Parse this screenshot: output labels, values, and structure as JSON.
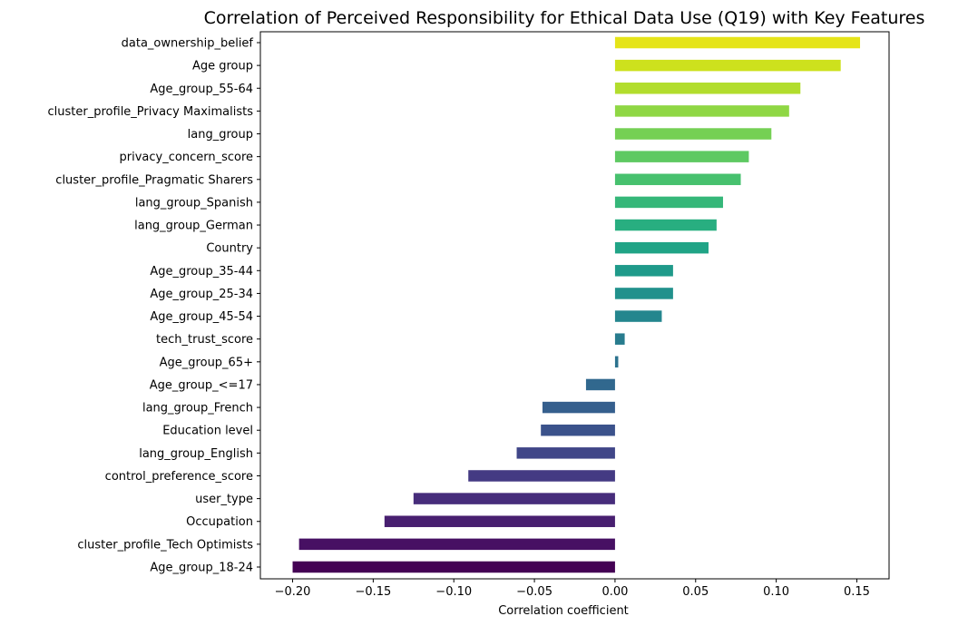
{
  "chart_data": {
    "type": "bar",
    "orientation": "horizontal",
    "title": "Correlation of Perceived Responsibility for Ethical Data Use (Q19) with Key Features",
    "xlabel": "Correlation coefficient",
    "ylabel": "",
    "xlim": [
      -0.22,
      0.17
    ],
    "xticks": [
      -0.2,
      -0.15,
      -0.1,
      -0.05,
      0.0,
      0.05,
      0.1,
      0.15
    ],
    "xtick_labels": [
      "−0.20",
      "−0.15",
      "−0.10",
      "−0.05",
      "0.00",
      "0.05",
      "0.10",
      "0.15"
    ],
    "grid": false,
    "colormap": "viridis",
    "categories": [
      "data_ownership_belief",
      "Age group",
      "Age_group_55-64",
      "cluster_profile_Privacy Maximalists",
      "lang_group",
      "privacy_concern_score",
      "cluster_profile_Pragmatic Sharers",
      "lang_group_Spanish",
      "lang_group_German",
      "Country",
      "Age_group_35-44",
      "Age_group_25-34",
      "Age_group_45-54",
      "tech_trust_score",
      "Age_group_65+",
      "Age_group_<=17",
      "lang_group_French",
      "Education level",
      "lang_group_English",
      "control_preference_score",
      "user_type",
      "Occupation",
      "cluster_profile_Tech Optimists",
      "Age_group_18-24"
    ],
    "values": [
      0.152,
      0.14,
      0.115,
      0.108,
      0.097,
      0.083,
      0.078,
      0.067,
      0.063,
      0.058,
      0.036,
      0.036,
      0.029,
      0.006,
      0.002,
      -0.018,
      -0.045,
      -0.046,
      -0.061,
      -0.091,
      -0.125,
      -0.143,
      -0.196,
      -0.2
    ],
    "colors": [
      "#e5e419",
      "#cde11d",
      "#b2dd2d",
      "#8fd744",
      "#75d054",
      "#5ec962",
      "#47c16e",
      "#35b779",
      "#28ae80",
      "#20a486",
      "#1f9a8a",
      "#21918c",
      "#24868e",
      "#287c8e",
      "#2c728e",
      "#31688e",
      "#355f8d",
      "#3b528b",
      "#404688",
      "#443a83",
      "#472d7b",
      "#481f70",
      "#471063",
      "#440154"
    ]
  }
}
